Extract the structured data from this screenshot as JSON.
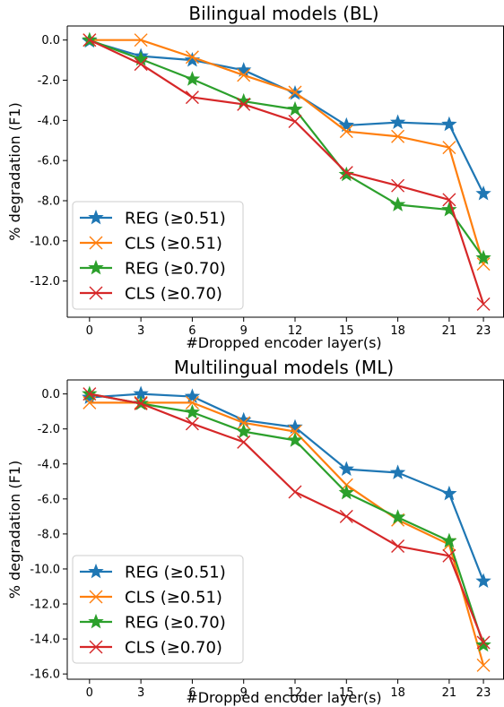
{
  "chart_data": [
    {
      "type": "line",
      "title": "Bilingual models (BL)",
      "xlabel": "#Dropped encoder layer(s)",
      "ylabel": "% degradation (F1)",
      "x": [
        0,
        3,
        6,
        9,
        12,
        15,
        18,
        21,
        23
      ],
      "x_tick_labels": [
        "0",
        "3",
        "6",
        "9",
        "12",
        "15",
        "18",
        "21",
        "23"
      ],
      "y_ticks": [
        0,
        -2,
        -4,
        -6,
        -8,
        -10,
        -12
      ],
      "y_tick_labels": [
        "0.0",
        "-2.0",
        "-4.0",
        "-6.0",
        "-8.0",
        "-10.0",
        "-12.0"
      ],
      "ylim": [
        -13.8,
        0.7
      ],
      "legend_position": "lower-left",
      "series": [
        {
          "name": "REG (≥0.51)",
          "color": "#1f77b4",
          "marker": "star",
          "values": [
            -0.05,
            -0.8,
            -1.0,
            -1.5,
            -2.65,
            -4.25,
            -4.1,
            -4.2,
            -7.65
          ]
        },
        {
          "name": "CLS (≥0.51)",
          "color": "#ff7f0e",
          "marker": "x",
          "values": [
            0.0,
            0.0,
            -0.85,
            -1.75,
            -2.6,
            -4.55,
            -4.8,
            -5.35,
            -11.15
          ]
        },
        {
          "name": "REG (≥0.70)",
          "color": "#2ca02c",
          "marker": "star",
          "values": [
            0.0,
            -0.95,
            -1.95,
            -3.05,
            -3.45,
            -6.7,
            -8.2,
            -8.45,
            -10.85
          ]
        },
        {
          "name": "CLS (≥0.70)",
          "color": "#d62728",
          "marker": "x",
          "values": [
            0.0,
            -1.2,
            -2.85,
            -3.2,
            -4.05,
            -6.6,
            -7.25,
            -7.95,
            -13.15
          ]
        }
      ]
    },
    {
      "type": "line",
      "title": "Multilingual models (ML)",
      "xlabel": "#Dropped encoder layer(s)",
      "ylabel": "% degradation (F1)",
      "x": [
        0,
        3,
        6,
        9,
        12,
        15,
        18,
        21,
        23
      ],
      "x_tick_labels": [
        "0",
        "3",
        "6",
        "9",
        "12",
        "15",
        "18",
        "21",
        "23"
      ],
      "y_ticks": [
        0,
        -2,
        -4,
        -6,
        -8,
        -10,
        -12,
        -14,
        -16
      ],
      "y_tick_labels": [
        "0.0",
        "-2.0",
        "-4.0",
        "-6.0",
        "-8.0",
        "-10.0",
        "-12.0",
        "-14.0",
        "-16.0"
      ],
      "ylim": [
        -16.3,
        0.8
      ],
      "legend_position": "lower-left",
      "series": [
        {
          "name": "REG (≥0.51)",
          "color": "#1f77b4",
          "marker": "star",
          "values": [
            -0.2,
            0.0,
            -0.15,
            -1.5,
            -1.9,
            -4.3,
            -4.5,
            -5.7,
            -10.7
          ]
        },
        {
          "name": "CLS (≥0.51)",
          "color": "#ff7f0e",
          "marker": "x",
          "values": [
            -0.5,
            -0.5,
            -0.5,
            -1.65,
            -2.15,
            -5.2,
            -7.2,
            -8.6,
            -15.5
          ]
        },
        {
          "name": "REG (≥0.70)",
          "color": "#2ca02c",
          "marker": "star",
          "values": [
            0.0,
            -0.55,
            -1.05,
            -2.15,
            -2.65,
            -5.65,
            -7.05,
            -8.4,
            -14.35
          ]
        },
        {
          "name": "CLS (≥0.70)",
          "color": "#d62728",
          "marker": "x",
          "values": [
            0.0,
            -0.55,
            -1.7,
            -2.75,
            -5.6,
            -7.0,
            -8.7,
            -9.25,
            -14.2
          ]
        }
      ]
    }
  ]
}
